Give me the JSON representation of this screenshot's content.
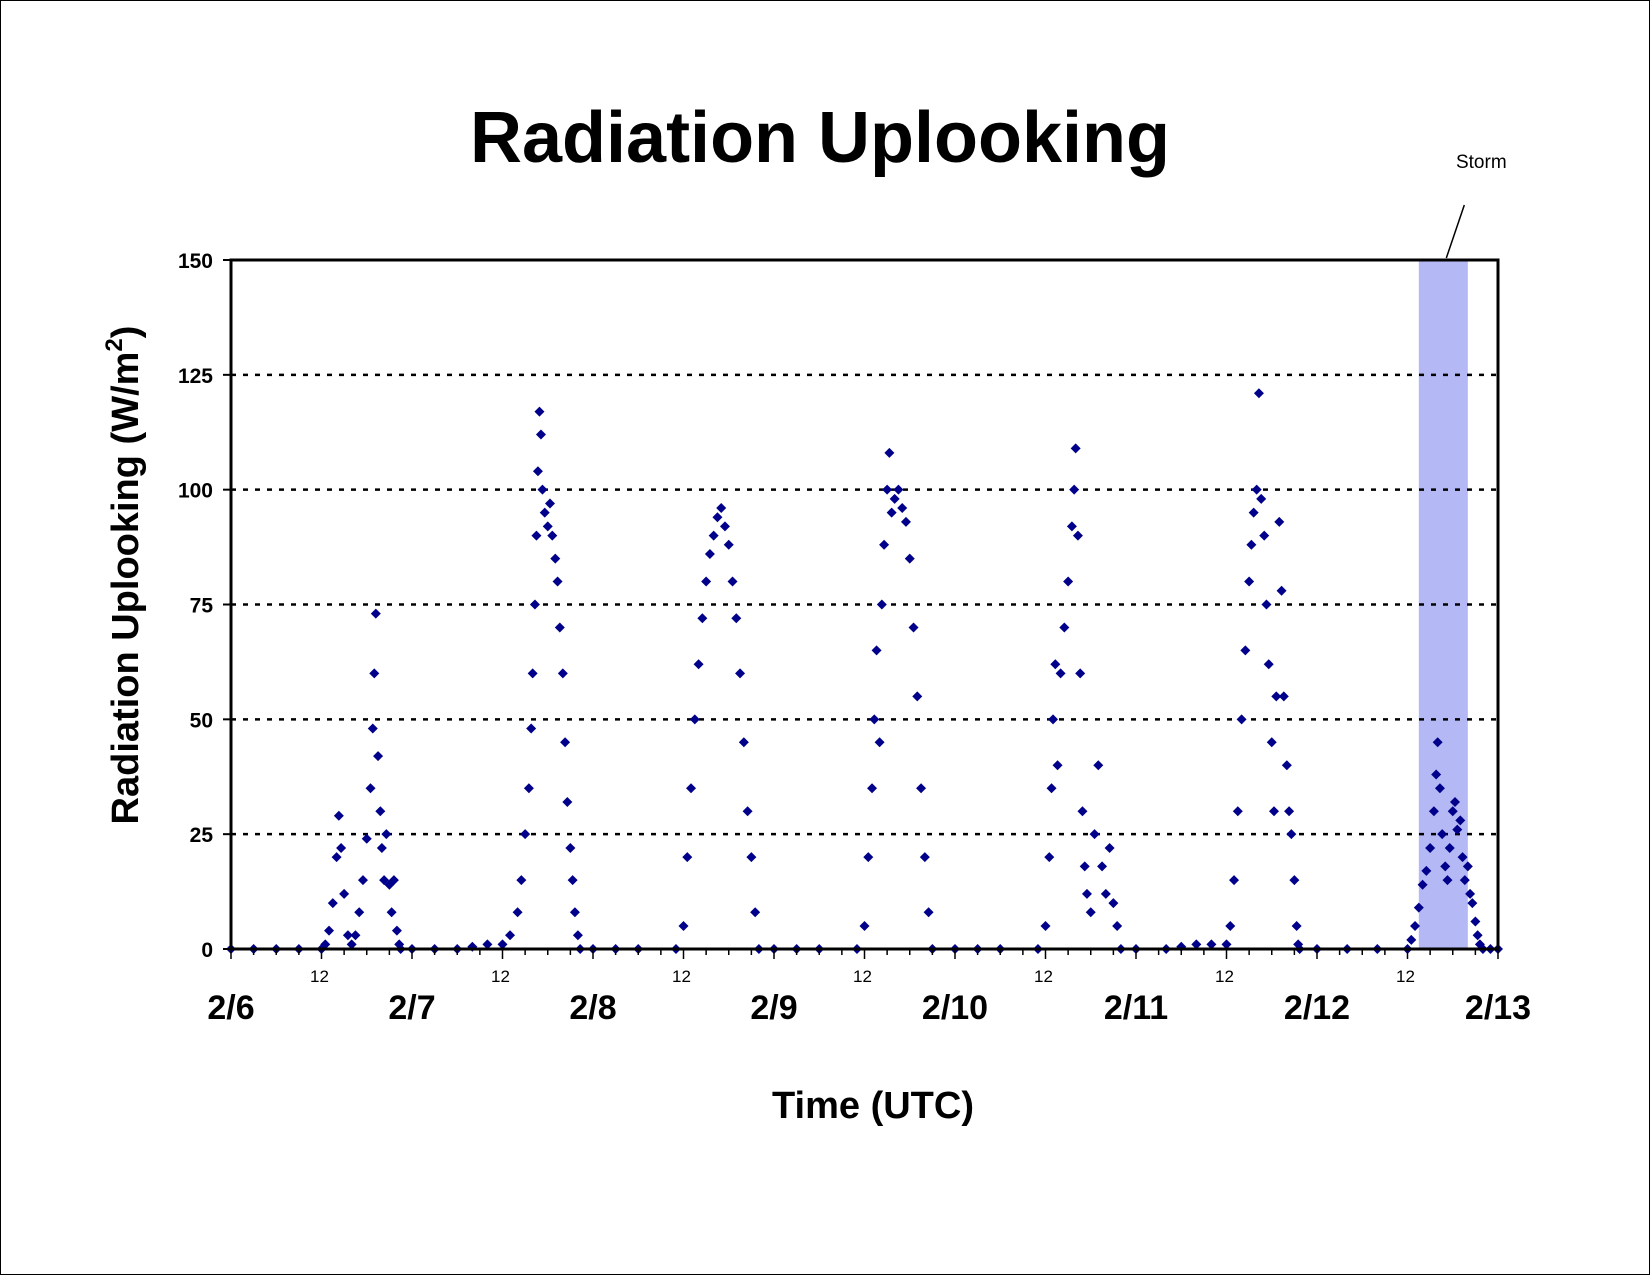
{
  "chart_data": {
    "type": "scatter",
    "title": "Radiation Uplooking",
    "xlabel": "Time (UTC)",
    "ylabel": "Radiation Uplooking (W/m²)",
    "ylabel_parts": {
      "main": "Radiation Uplooking (W/m",
      "superscript": "2",
      "close": ")"
    },
    "x_unit": "hours since 2/6 00:00 UTC",
    "xlim": [
      0,
      168
    ],
    "ylim": [
      0,
      150
    ],
    "y_ticks": [
      0,
      25,
      50,
      75,
      100,
      125,
      150
    ],
    "x_major_ticks": [
      {
        "x": 0,
        "label": "2/6"
      },
      {
        "x": 24,
        "label": "2/7"
      },
      {
        "x": 48,
        "label": "2/8"
      },
      {
        "x": 72,
        "label": "2/9"
      },
      {
        "x": 96,
        "label": "2/10"
      },
      {
        "x": 120,
        "label": "2/11"
      },
      {
        "x": 144,
        "label": "2/12"
      },
      {
        "x": 168,
        "label": "2/13"
      }
    ],
    "x_minor_ticks": [
      {
        "x": 12,
        "label": "12"
      },
      {
        "x": 36,
        "label": "12"
      },
      {
        "x": 60,
        "label": "12"
      },
      {
        "x": 84,
        "label": "12"
      },
      {
        "x": 108,
        "label": "12"
      },
      {
        "x": 132,
        "label": "12"
      },
      {
        "x": 156,
        "label": "12"
      }
    ],
    "grid": {
      "horizontal_dotted": true
    },
    "marker_color": "#00008B",
    "shaded_region": {
      "x_start": 157.5,
      "x_end": 164,
      "color": "#B4B9F5",
      "label": "Storm"
    },
    "series": [
      {
        "values": [
          [
            0,
            0
          ],
          [
            3,
            0
          ],
          [
            6,
            0
          ],
          [
            9,
            0
          ],
          [
            12,
            0
          ],
          [
            12.5,
            1
          ],
          [
            13,
            4
          ],
          [
            13.5,
            10
          ],
          [
            14,
            20
          ],
          [
            14.3,
            29
          ],
          [
            14.6,
            22
          ],
          [
            15,
            12
          ],
          [
            15.5,
            3
          ],
          [
            16,
            1
          ],
          [
            16.5,
            3
          ],
          [
            17,
            8
          ],
          [
            17.5,
            15
          ],
          [
            18,
            24
          ],
          [
            18.5,
            35
          ],
          [
            18.8,
            48
          ],
          [
            19,
            60
          ],
          [
            19.2,
            73
          ],
          [
            19.5,
            42
          ],
          [
            19.8,
            30
          ],
          [
            20,
            22
          ],
          [
            20.3,
            15
          ],
          [
            20.6,
            25
          ],
          [
            21,
            14
          ],
          [
            21.3,
            8
          ],
          [
            21.6,
            15
          ],
          [
            22,
            4
          ],
          [
            22.3,
            1
          ],
          [
            22.5,
            0
          ],
          [
            24,
            0
          ],
          [
            27,
            0
          ],
          [
            30,
            0
          ],
          [
            32,
            0.5
          ],
          [
            34,
            1
          ],
          [
            36,
            1
          ],
          [
            37,
            3
          ],
          [
            38,
            8
          ],
          [
            38.5,
            15
          ],
          [
            39,
            25
          ],
          [
            39.5,
            35
          ],
          [
            39.8,
            48
          ],
          [
            40,
            60
          ],
          [
            40.3,
            75
          ],
          [
            40.5,
            90
          ],
          [
            40.7,
            104
          ],
          [
            40.9,
            117
          ],
          [
            41.1,
            112
          ],
          [
            41.3,
            100
          ],
          [
            41.6,
            95
          ],
          [
            42,
            92
          ],
          [
            42.3,
            97
          ],
          [
            42.6,
            90
          ],
          [
            43,
            85
          ],
          [
            43.3,
            80
          ],
          [
            43.6,
            70
          ],
          [
            44,
            60
          ],
          [
            44.3,
            45
          ],
          [
            44.6,
            32
          ],
          [
            45,
            22
          ],
          [
            45.3,
            15
          ],
          [
            45.6,
            8
          ],
          [
            46,
            3
          ],
          [
            46.3,
            0
          ],
          [
            48,
            0
          ],
          [
            51,
            0
          ],
          [
            54,
            0
          ],
          [
            59,
            0
          ],
          [
            60,
            5
          ],
          [
            60.5,
            20
          ],
          [
            61,
            35
          ],
          [
            61.5,
            50
          ],
          [
            62,
            62
          ],
          [
            62.5,
            72
          ],
          [
            63,
            80
          ],
          [
            63.5,
            86
          ],
          [
            64,
            90
          ],
          [
            64.5,
            94
          ],
          [
            65,
            96
          ],
          [
            65.5,
            92
          ],
          [
            66,
            88
          ],
          [
            66.5,
            80
          ],
          [
            67,
            72
          ],
          [
            67.5,
            60
          ],
          [
            68,
            45
          ],
          [
            68.5,
            30
          ],
          [
            69,
            20
          ],
          [
            69.5,
            8
          ],
          [
            70,
            0
          ],
          [
            72,
            0
          ],
          [
            75,
            0
          ],
          [
            78,
            0
          ],
          [
            83,
            0
          ],
          [
            84,
            5
          ],
          [
            84.5,
            20
          ],
          [
            85,
            35
          ],
          [
            85.3,
            50
          ],
          [
            85.6,
            65
          ],
          [
            86,
            45
          ],
          [
            86.3,
            75
          ],
          [
            86.6,
            88
          ],
          [
            87,
            100
          ],
          [
            87.3,
            108
          ],
          [
            87.6,
            95
          ],
          [
            88,
            98
          ],
          [
            88.5,
            100
          ],
          [
            89,
            96
          ],
          [
            89.5,
            93
          ],
          [
            90,
            85
          ],
          [
            90.5,
            70
          ],
          [
            91,
            55
          ],
          [
            91.5,
            35
          ],
          [
            92,
            20
          ],
          [
            92.5,
            8
          ],
          [
            93,
            0
          ],
          [
            96,
            0
          ],
          [
            99,
            0
          ],
          [
            102,
            0
          ],
          [
            107,
            0
          ],
          [
            108,
            5
          ],
          [
            108.5,
            20
          ],
          [
            108.8,
            35
          ],
          [
            109,
            50
          ],
          [
            109.3,
            62
          ],
          [
            109.6,
            40
          ],
          [
            110,
            60
          ],
          [
            110.5,
            70
          ],
          [
            111,
            80
          ],
          [
            111.5,
            92
          ],
          [
            111.8,
            100
          ],
          [
            112,
            109
          ],
          [
            112.3,
            90
          ],
          [
            112.6,
            60
          ],
          [
            112.9,
            30
          ],
          [
            113.2,
            18
          ],
          [
            113.5,
            12
          ],
          [
            114,
            8
          ],
          [
            114.5,
            25
          ],
          [
            115,
            40
          ],
          [
            115.5,
            18
          ],
          [
            116,
            12
          ],
          [
            116.5,
            22
          ],
          [
            117,
            10
          ],
          [
            117.5,
            5
          ],
          [
            118,
            0
          ],
          [
            120,
            0
          ],
          [
            124,
            0
          ],
          [
            126,
            0.5
          ],
          [
            128,
            1
          ],
          [
            130,
            1
          ],
          [
            132,
            1
          ],
          [
            132.5,
            5
          ],
          [
            133,
            15
          ],
          [
            133.5,
            30
          ],
          [
            134,
            50
          ],
          [
            134.5,
            65
          ],
          [
            135,
            80
          ],
          [
            135.3,
            88
          ],
          [
            135.6,
            95
          ],
          [
            136,
            100
          ],
          [
            136.3,
            121
          ],
          [
            136.6,
            98
          ],
          [
            137,
            90
          ],
          [
            137.3,
            75
          ],
          [
            137.6,
            62
          ],
          [
            138,
            45
          ],
          [
            138.3,
            30
          ],
          [
            138.6,
            55
          ],
          [
            139,
            93
          ],
          [
            139.3,
            78
          ],
          [
            139.6,
            55
          ],
          [
            140,
            40
          ],
          [
            140.3,
            30
          ],
          [
            140.6,
            25
          ],
          [
            141,
            15
          ],
          [
            141.3,
            5
          ],
          [
            141.5,
            1
          ],
          [
            141.7,
            0
          ],
          [
            144,
            0
          ],
          [
            148,
            0
          ],
          [
            152,
            0
          ],
          [
            156,
            0
          ],
          [
            156.5,
            2
          ],
          [
            157,
            5
          ],
          [
            157.5,
            9
          ],
          [
            158,
            14
          ],
          [
            158.5,
            17
          ],
          [
            159,
            22
          ],
          [
            159.5,
            30
          ],
          [
            159.8,
            38
          ],
          [
            160,
            45
          ],
          [
            160.3,
            35
          ],
          [
            160.6,
            25
          ],
          [
            161,
            18
          ],
          [
            161.3,
            15
          ],
          [
            161.6,
            22
          ],
          [
            162,
            30
          ],
          [
            162.3,
            32
          ],
          [
            162.6,
            26
          ],
          [
            163,
            28
          ],
          [
            163.3,
            20
          ],
          [
            163.6,
            15
          ],
          [
            164,
            18
          ],
          [
            164.3,
            12
          ],
          [
            164.6,
            10
          ],
          [
            165,
            6
          ],
          [
            165.3,
            3
          ],
          [
            165.6,
            1
          ],
          [
            166,
            0
          ],
          [
            167,
            0
          ],
          [
            168,
            0
          ]
        ]
      }
    ]
  }
}
